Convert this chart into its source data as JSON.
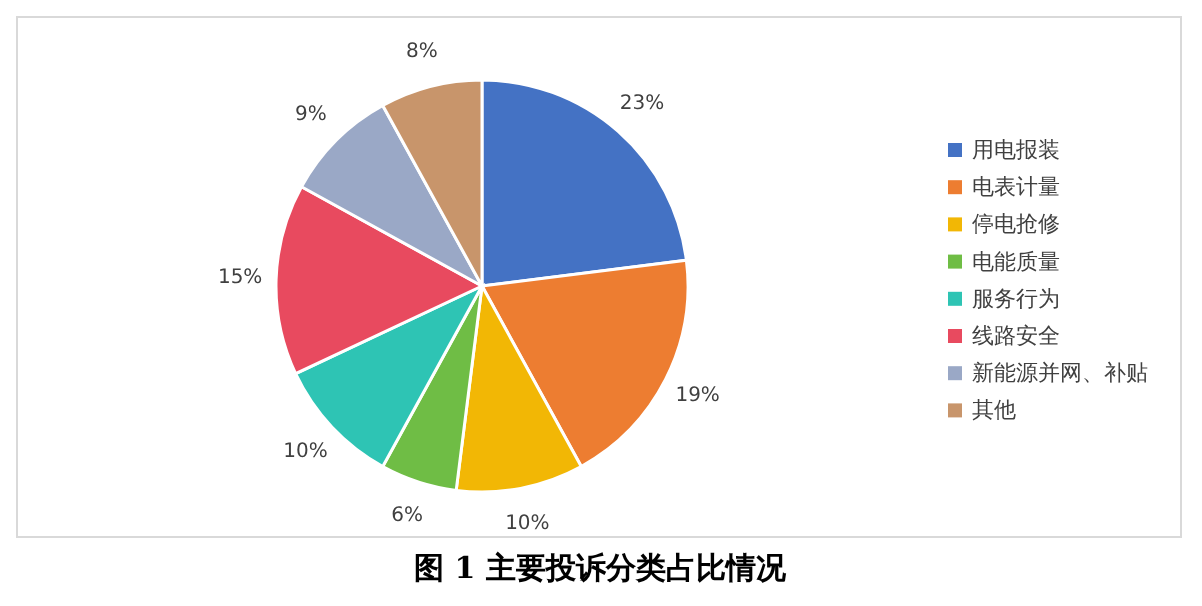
{
  "chart_data": {
    "type": "pie",
    "title": "图 1  主要投诉分类占比情况",
    "categories": [
      "用电报装",
      "电表计量",
      "停电抢修",
      "电能质量",
      "服务行为",
      "线路安全",
      "新能源并网、补贴",
      "其他"
    ],
    "values": [
      23,
      19,
      10,
      6,
      10,
      15,
      9,
      8
    ],
    "colors": [
      "#4472c4",
      "#ed7d31",
      "#f2b705",
      "#6fbd45",
      "#2ec4b4",
      "#e84a5f",
      "#9aa8c6",
      "#c8956b"
    ],
    "value_labels": [
      "23%",
      "19%",
      "10%",
      "6%",
      "10%",
      "15%",
      "9%",
      "8%"
    ],
    "legend": "right"
  }
}
